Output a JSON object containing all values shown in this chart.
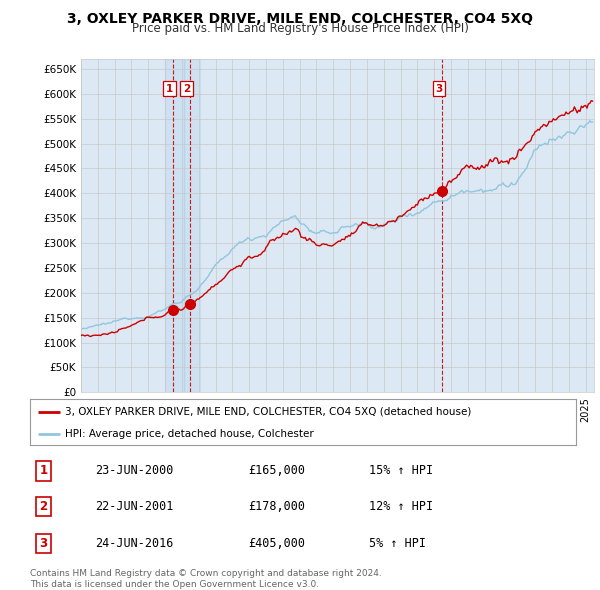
{
  "title": "3, OXLEY PARKER DRIVE, MILE END, COLCHESTER, CO4 5XQ",
  "subtitle": "Price paid vs. HM Land Registry's House Price Index (HPI)",
  "ylim": [
    0,
    670000
  ],
  "yticks": [
    0,
    50000,
    100000,
    150000,
    200000,
    250000,
    300000,
    350000,
    400000,
    450000,
    500000,
    550000,
    600000,
    650000
  ],
  "xlim_start": 1995.0,
  "xlim_end": 2025.5,
  "hpi_color": "#92c5de",
  "price_color": "#cc0000",
  "vline_color": "#cc0000",
  "grid_color": "#c8c8c8",
  "chart_bg": "#dce9f5",
  "bg_color": "#ffffff",
  "transactions": [
    {
      "label": "1",
      "date_num": 2000.47,
      "price": 165000
    },
    {
      "label": "2",
      "date_num": 2001.47,
      "price": 178000
    },
    {
      "label": "3",
      "date_num": 2016.47,
      "price": 405000
    }
  ],
  "legend_entries": [
    "3, OXLEY PARKER DRIVE, MILE END, COLCHESTER, CO4 5XQ (detached house)",
    "HPI: Average price, detached house, Colchester"
  ],
  "table_rows": [
    {
      "num": "1",
      "date": "23-JUN-2000",
      "price": "£165,000",
      "hpi": "15% ↑ HPI"
    },
    {
      "num": "2",
      "date": "22-JUN-2001",
      "price": "£178,000",
      "hpi": "12% ↑ HPI"
    },
    {
      "num": "3",
      "date": "24-JUN-2016",
      "price": "£405,000",
      "hpi": "5% ↑ HPI"
    }
  ],
  "footer": "Contains HM Land Registry data © Crown copyright and database right 2024.\nThis data is licensed under the Open Government Licence v3.0."
}
